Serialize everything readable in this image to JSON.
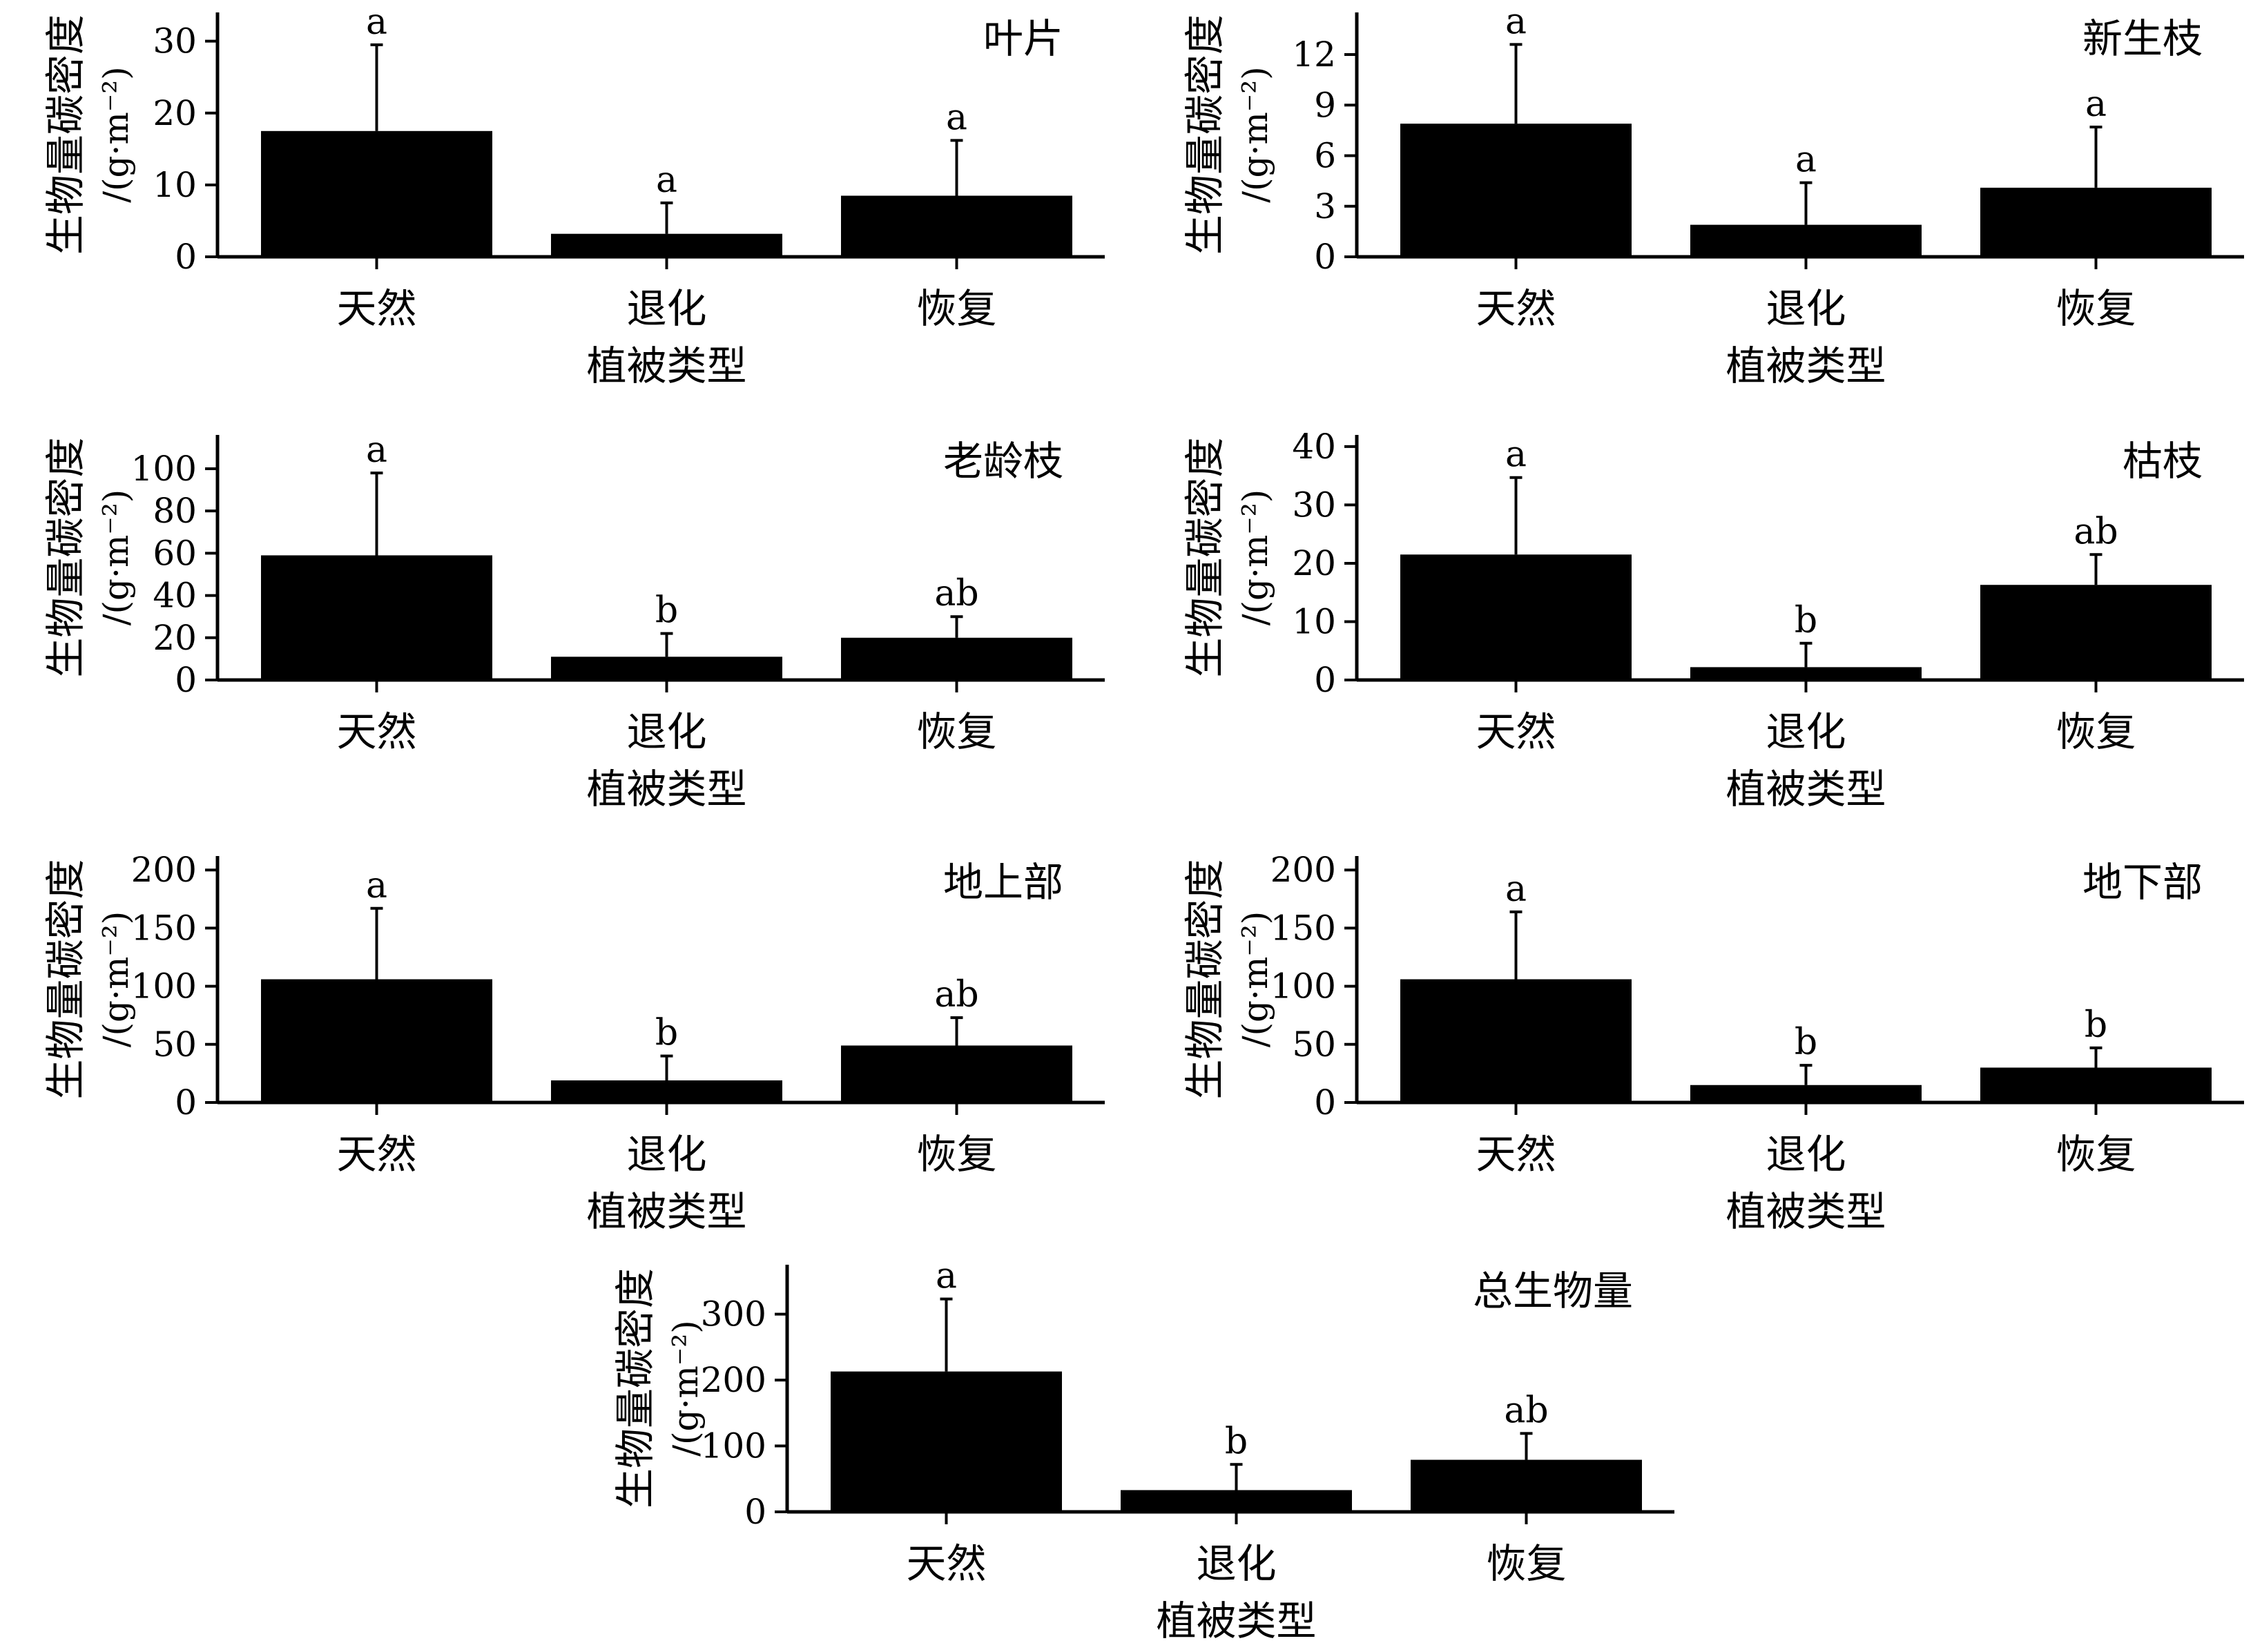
{
  "chart_data": [
    {
      "type": "bar",
      "title": "叶片",
      "xlabel": "植被类型",
      "ylabel": "生物量碳密度",
      "yunit": "/(g·m⁻²)",
      "categories": [
        "天然",
        "退化",
        "恢复"
      ],
      "values": [
        17.5,
        3.2,
        8.5
      ],
      "errors": [
        12.0,
        4.3,
        7.7
      ],
      "letters": [
        "a",
        "a",
        "a"
      ],
      "ylim": [
        0,
        34
      ],
      "yticks": [
        0,
        10,
        20,
        30
      ]
    },
    {
      "type": "bar",
      "title": "新生枝",
      "xlabel": "植被类型",
      "ylabel": "生物量碳密度",
      "yunit": "/(g·m⁻²)",
      "categories": [
        "天然",
        "退化",
        "恢复"
      ],
      "values": [
        7.9,
        1.9,
        4.1
      ],
      "errors": [
        4.7,
        2.5,
        3.6
      ],
      "letters": [
        "a",
        "a",
        "a"
      ],
      "ylim": [
        0,
        14.5
      ],
      "yticks": [
        0,
        3,
        6,
        9,
        12
      ]
    },
    {
      "type": "bar",
      "title": "老龄枝",
      "xlabel": "植被类型",
      "ylabel": "生物量碳密度",
      "yunit": "/(g·m⁻²)",
      "categories": [
        "天然",
        "退化",
        "恢复"
      ],
      "values": [
        59,
        11,
        20
      ],
      "errors": [
        39,
        11,
        10
      ],
      "letters": [
        "a",
        "b",
        "ab"
      ],
      "ylim": [
        0,
        116
      ],
      "yticks": [
        0,
        20,
        40,
        60,
        80,
        100
      ]
    },
    {
      "type": "bar",
      "title": "枯枝",
      "xlabel": "植被类型",
      "ylabel": "生物量碳密度",
      "yunit": "/(g·m⁻²)",
      "categories": [
        "天然",
        "退化",
        "恢复"
      ],
      "values": [
        21.5,
        2.2,
        16.3
      ],
      "errors": [
        13.2,
        4.1,
        5.2
      ],
      "letters": [
        "a",
        "b",
        "ab"
      ],
      "ylim": [
        0,
        42
      ],
      "yticks": [
        0,
        10,
        20,
        30,
        40
      ]
    },
    {
      "type": "bar",
      "title": "地上部",
      "xlabel": "植被类型",
      "ylabel": "生物量碳密度",
      "yunit": "/(g·m⁻²)",
      "categories": [
        "天然",
        "退化",
        "恢复"
      ],
      "values": [
        106,
        19,
        49
      ],
      "errors": [
        61,
        21,
        24
      ],
      "letters": [
        "a",
        "b",
        "ab"
      ],
      "ylim": [
        0,
        212
      ],
      "yticks": [
        0,
        50,
        100,
        150,
        200
      ]
    },
    {
      "type": "bar",
      "title": "地下部",
      "xlabel": "植被类型",
      "ylabel": "生物量碳密度",
      "yunit": "/(g·m⁻²)",
      "categories": [
        "天然",
        "退化",
        "恢复"
      ],
      "values": [
        106,
        15,
        30
      ],
      "errors": [
        58,
        17,
        17
      ],
      "letters": [
        "a",
        "b",
        "b"
      ],
      "ylim": [
        0,
        212
      ],
      "yticks": [
        0,
        50,
        100,
        150,
        200
      ]
    },
    {
      "type": "bar",
      "title": "总生物量",
      "xlabel": "植被类型",
      "ylabel": "生物量碳密度",
      "yunit": "/(g·m⁻²)",
      "categories": [
        "天然",
        "退化",
        "恢复"
      ],
      "values": [
        213,
        33,
        79
      ],
      "errors": [
        110,
        39,
        40
      ],
      "letters": [
        "a",
        "b",
        "ab"
      ],
      "ylim": [
        0,
        375
      ],
      "yticks": [
        0,
        100,
        200,
        300
      ]
    }
  ]
}
